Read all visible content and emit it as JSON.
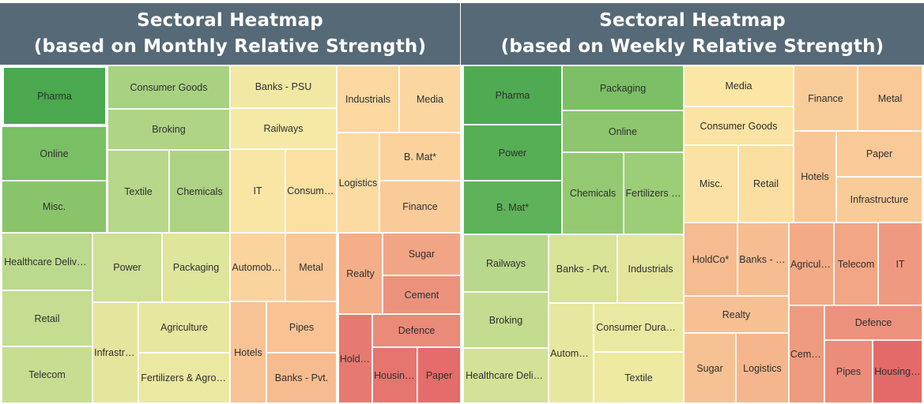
{
  "chart_data": [
    {
      "type": "treemap",
      "title": [
        "Sectoral Heatmap",
        "(based on Monthly Relative Strength)"
      ],
      "color_scale": "green (strongest) to red (weakest)",
      "sectors": [
        {
          "label": "Pharma",
          "color": "#4aa84e"
        },
        {
          "label": "Online",
          "color": "#79bf64"
        },
        {
          "label": "Misc.",
          "color": "#89c46b"
        },
        {
          "label": "Consumer Goods",
          "color": "#a8d281"
        },
        {
          "label": "Broking",
          "color": "#b0d485"
        },
        {
          "label": "Textile",
          "color": "#b7d78a"
        },
        {
          "label": "Chemicals",
          "color": "#aed283"
        },
        {
          "label": "Banks - PSU",
          "color": "#f1e8a3"
        },
        {
          "label": "Railways",
          "color": "#f5e9a5"
        },
        {
          "label": "IT",
          "color": "#f9e6a5"
        },
        {
          "label": "Consumer...",
          "color": "#fbe0a1"
        },
        {
          "label": "Industrials",
          "color": "#fbd8a0"
        },
        {
          "label": "Media",
          "color": "#fbd6a0"
        },
        {
          "label": "Logistics",
          "color": "#fbdba1"
        },
        {
          "label": "B. Mat*",
          "color": "#fbd29c"
        },
        {
          "label": "Finance",
          "color": "#f9cb98"
        },
        {
          "label": "Healthcare Delivery",
          "color": "#bcda8d"
        },
        {
          "label": "Retail",
          "color": "#c4dd90"
        },
        {
          "label": "Telecom",
          "color": "#c7de91"
        },
        {
          "label": "Power",
          "color": "#cde095"
        },
        {
          "label": "Packaging",
          "color": "#dfe59b"
        },
        {
          "label": "Infrastruc...",
          "color": "#e5e69d"
        },
        {
          "label": "Agriculture",
          "color": "#e8e79f"
        },
        {
          "label": "Fertilizers & Agro Ch...",
          "color": "#ebe8a1"
        },
        {
          "label": "Automobiles",
          "color": "#fbd39d"
        },
        {
          "label": "Metal",
          "color": "#f9c896"
        },
        {
          "label": "Pipes",
          "color": "#f9c394"
        },
        {
          "label": "Hotels",
          "color": "#f8c394"
        },
        {
          "label": "Banks - Pvt.",
          "color": "#f6bc90"
        },
        {
          "label": "Realty",
          "color": "#f4ae88"
        },
        {
          "label": "Sugar",
          "color": "#f2a584"
        },
        {
          "label": "Cement",
          "color": "#ec927c"
        },
        {
          "label": "Defence",
          "color": "#ea8a79"
        },
        {
          "label": "HoldC...",
          "color": "#e67a71"
        },
        {
          "label": "Housing F...",
          "color": "#e6746f"
        },
        {
          "label": "Paper",
          "color": "#e46c6b"
        }
      ]
    },
    {
      "type": "treemap",
      "title": [
        "Sectoral Heatmap",
        "(based on Weekly Relative Strength)"
      ],
      "color_scale": "green (strongest) to red (weakest)",
      "sectors": [
        {
          "label": "Pharma",
          "color": "#4fab52"
        },
        {
          "label": "Power",
          "color": "#56ae55"
        },
        {
          "label": "B. Mat*",
          "color": "#5db25a"
        },
        {
          "label": "Packaging",
          "color": "#7cbf66"
        },
        {
          "label": "Online",
          "color": "#8dc66e"
        },
        {
          "label": "Chemicals",
          "color": "#94c972"
        },
        {
          "label": "Fertilizers &...",
          "color": "#9ccd77"
        },
        {
          "label": "Media",
          "color": "#fbe6a5"
        },
        {
          "label": "Consumer Goods",
          "color": "#fbe3a3"
        },
        {
          "label": "Misc.",
          "color": "#fbe1a3"
        },
        {
          "label": "Retail",
          "color": "#fbdea2"
        },
        {
          "label": "Finance",
          "color": "#f9cd99"
        },
        {
          "label": "Metal",
          "color": "#f9ca97"
        },
        {
          "label": "Hotels",
          "color": "#f9c696"
        },
        {
          "label": "Paper",
          "color": "#f9c997"
        },
        {
          "label": "Infrastructure",
          "color": "#f9cb98"
        },
        {
          "label": "Railways",
          "color": "#b9d88b"
        },
        {
          "label": "Broking",
          "color": "#c3dc90"
        },
        {
          "label": "Healthcare Delivery",
          "color": "#d3e297"
        },
        {
          "label": "Banks - Pvt.",
          "color": "#d8e398"
        },
        {
          "label": "Industrials",
          "color": "#e2e69c"
        },
        {
          "label": "Automobi...",
          "color": "#e7e89f"
        },
        {
          "label": "Consumer Durables",
          "color": "#eae9a1"
        },
        {
          "label": "Textile",
          "color": "#eeeaa2"
        },
        {
          "label": "HoldCo*",
          "color": "#f6bb8f"
        },
        {
          "label": "Banks - PSU",
          "color": "#f6bd91"
        },
        {
          "label": "Agriculture",
          "color": "#f3aa86"
        },
        {
          "label": "Telecom",
          "color": "#f2a685"
        },
        {
          "label": "IT",
          "color": "#ef9a80"
        },
        {
          "label": "Realty",
          "color": "#f7c093"
        },
        {
          "label": "Sugar",
          "color": "#f7c293"
        },
        {
          "label": "Logistics",
          "color": "#f5b68d"
        },
        {
          "label": "Cement",
          "color": "#ef9b7f"
        },
        {
          "label": "Defence",
          "color": "#ec917c"
        },
        {
          "label": "Pipes",
          "color": "#eb8d7a"
        },
        {
          "label": "Housing F...",
          "color": "#e46a6a"
        }
      ]
    }
  ]
}
